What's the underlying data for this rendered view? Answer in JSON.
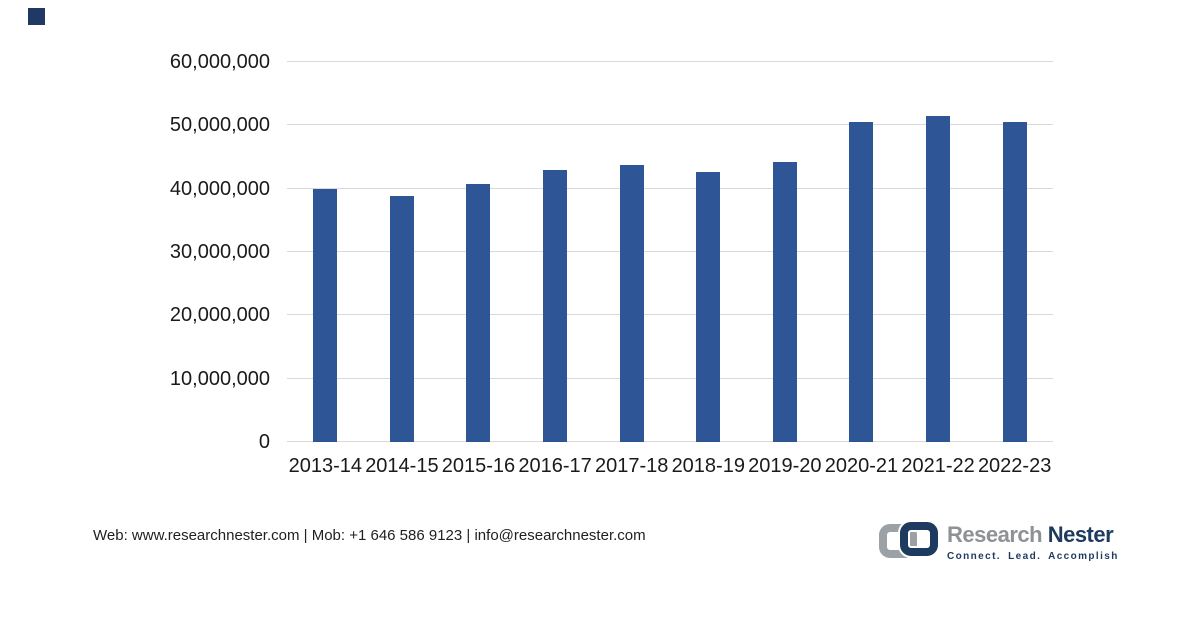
{
  "brand_square_color": "#1f3864",
  "chart_data": {
    "type": "bar",
    "title": "",
    "xlabel": "",
    "ylabel": "",
    "categories": [
      "2013-14",
      "2014-15",
      "2015-16",
      "2016-17",
      "2017-18",
      "2018-19",
      "2019-20",
      "2020-21",
      "2021-22",
      "2022-23"
    ],
    "values": [
      40000000,
      38800000,
      40700000,
      43000000,
      43800000,
      42600000,
      44200000,
      50500000,
      51500000,
      50600000
    ],
    "ylim": [
      0,
      60000000
    ],
    "ytick_labels": [
      "0",
      "10,000,000",
      "20,000,000",
      "30,000,000",
      "40,000,000",
      "50,000,000",
      "60,000,000"
    ],
    "grid": true,
    "legend": false,
    "bar_color": "#2e5596",
    "gridline_color": "#d9d9d9",
    "axis_text_color": "#1a1a1a"
  },
  "footer": {
    "contact_line": "Web: www.researchnester.com | Mob: +1 646 586 9123 | info@researchnester.com",
    "logo": {
      "name_part1": "Research",
      "name_part2": "Nester",
      "tagline": "Connect. Lead. Accomplish",
      "name_part1_color": "#8e9296",
      "name_part2_color": "#1e3a5f",
      "tagline_color": "#1e3a5f",
      "icon_gray": "#9ca1a5",
      "icon_navy": "#1e3a5f"
    }
  }
}
